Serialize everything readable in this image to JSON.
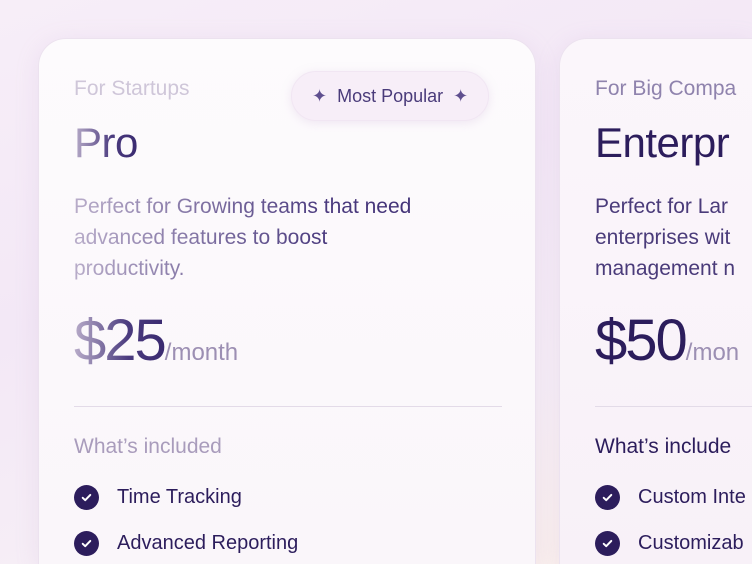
{
  "plans": [
    {
      "subtitle": "For Startups",
      "name": "Pro",
      "badge": "Most Popular",
      "description": "Perfect for Growing teams that need\nadvanced features to boost\nproductivity.",
      "price": "$25",
      "period": "/month",
      "included_label": "What’s included",
      "features": [
        "Time Tracking",
        "Advanced Reporting"
      ]
    },
    {
      "subtitle": "For Big Compa",
      "name": "Enterpr",
      "description": "Perfect for Lar\nenterprises wit\nmanagement n",
      "price": "$50",
      "period": "/mon",
      "included_label": "What’s include",
      "features": [
        "Custom Inte",
        "Customizab"
      ]
    }
  ],
  "icons": {
    "badge": "sparkle-icon",
    "feature": "check-circle-icon"
  },
  "colors": {
    "accent": "#2c1d5c",
    "badge_bg": "#f7eef8"
  }
}
